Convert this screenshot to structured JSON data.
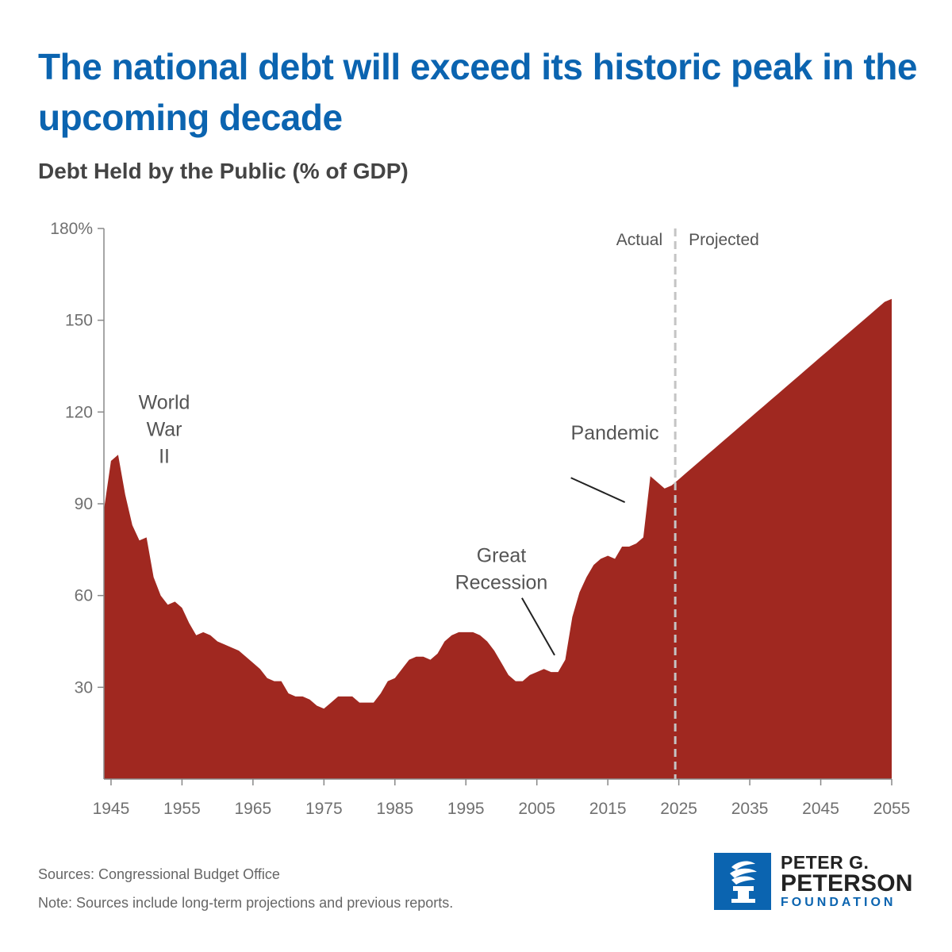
{
  "title": "The national debt will exceed its historic peak in the upcoming decade",
  "subtitle": "Debt Held by the Public (% of GDP)",
  "chart_data": {
    "type": "area",
    "title": "The national debt will exceed its historic peak in the upcoming decade",
    "subtitle": "Debt Held by the Public (% of GDP)",
    "xlabel": "",
    "ylabel": "",
    "xlim": [
      1944,
      2055
    ],
    "ylim": [
      0,
      180
    ],
    "yticks": [
      30,
      60,
      90,
      120,
      150,
      180
    ],
    "ytick_labels": [
      "30",
      "60",
      "90",
      "120",
      "150",
      "180%"
    ],
    "xticks": [
      1945,
      1955,
      1965,
      1975,
      1985,
      1995,
      2005,
      2015,
      2025,
      2035,
      2045,
      2055
    ],
    "grid": false,
    "fill_color": "#a02820",
    "divider_year": 2024.5,
    "divider_labels": {
      "left": "Actual",
      "right": "Projected"
    },
    "annotations": [
      {
        "lines": [
          "World",
          "War",
          "II"
        ],
        "x": 1952.5,
        "y": 121
      },
      {
        "lines": [
          "Pandemic"
        ],
        "x": 2016,
        "y": 111
      },
      {
        "lines": [
          "Great",
          "Recession"
        ],
        "x": 2000,
        "y": 71
      }
    ],
    "series": [
      {
        "x": [
          1944,
          1945,
          1946,
          1947,
          1948,
          1949,
          1950,
          1951,
          1952,
          1953,
          1954,
          1955,
          1956,
          1957,
          1958,
          1959,
          1960,
          1961,
          1962,
          1963,
          1964,
          1965,
          1966,
          1967,
          1968,
          1969,
          1970,
          1971,
          1972,
          1973,
          1974,
          1975,
          1976,
          1977,
          1978,
          1979,
          1980,
          1981,
          1982,
          1983,
          1984,
          1985,
          1986,
          1987,
          1988,
          1989,
          1990,
          1991,
          1992,
          1993,
          1994,
          1995,
          1996,
          1997,
          1998,
          1999,
          2000,
          2001,
          2002,
          2003,
          2004,
          2005,
          2006,
          2007,
          2008,
          2009,
          2010,
          2011,
          2012,
          2013,
          2014,
          2015,
          2016,
          2017,
          2018,
          2019,
          2020,
          2021,
          2022,
          2023,
          2024,
          2025,
          2026,
          2027,
          2028,
          2029,
          2030,
          2031,
          2032,
          2033,
          2034,
          2035,
          2036,
          2037,
          2038,
          2039,
          2040,
          2041,
          2042,
          2043,
          2044,
          2045,
          2046,
          2047,
          2048,
          2049,
          2050,
          2051,
          2052,
          2053,
          2054,
          2055
        ],
        "values": [
          88,
          104,
          106,
          93,
          83,
          78,
          79,
          66,
          60,
          57,
          58,
          56,
          51,
          47,
          48,
          47,
          45,
          44,
          43,
          42,
          40,
          38,
          36,
          33,
          32,
          32,
          28,
          27,
          27,
          26,
          24,
          23,
          25,
          27,
          27,
          27,
          25,
          25,
          25,
          28,
          32,
          33,
          36,
          39,
          40,
          40,
          39,
          41,
          45,
          47,
          48,
          48,
          48,
          47,
          45,
          42,
          38,
          34,
          32,
          32,
          34,
          35,
          36,
          35,
          35,
          39,
          53,
          61,
          66,
          70,
          72,
          73,
          72,
          76,
          76,
          77,
          79,
          99,
          97,
          95,
          96,
          98,
          100,
          102,
          104,
          106,
          108,
          110,
          112,
          114,
          116,
          118,
          120,
          122,
          124,
          126,
          128,
          130,
          132,
          134,
          136,
          138,
          140,
          142,
          144,
          146,
          148,
          150,
          152,
          154,
          156,
          157
        ]
      }
    ]
  },
  "footnotes": {
    "sources": "Sources: Congressional Budget Office",
    "note": "Note: Sources include long-term projections and previous reports."
  },
  "logo": {
    "line1": "PETER G.",
    "line2": "PETERSON",
    "line3": "FOUNDATION",
    "icon": "torch-icon"
  }
}
